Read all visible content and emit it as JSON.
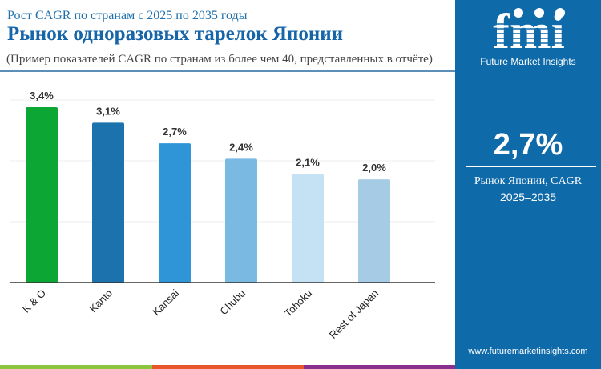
{
  "header": {
    "subtitle": "Рост CAGR по странам с 2025 по 2035 годы",
    "title": "Рынок одноразовых тарелок Японии",
    "note": "(Пример показателей CAGR по странам из более чем 40, представленных в отчёте)"
  },
  "sidebar": {
    "brand": "Future Market Insights",
    "logo_text": "fmi",
    "headline_value": "2,7%",
    "caption_line1": "Рынок Японии, CAGR",
    "caption_line2": "2025–2035",
    "url": "www.futuremarketinsights.com",
    "background": "#0f6aa9"
  },
  "footer_strip_colors": [
    "#8cc63f",
    "#e8572a",
    "#8b2f8f"
  ],
  "chart_data": {
    "type": "bar",
    "categories": [
      "K & O",
      "Kanto",
      "Kansai",
      "Chubu",
      "Tohoku",
      "Rest of Japan"
    ],
    "values": [
      3.4,
      3.1,
      2.7,
      2.4,
      2.1,
      2.0
    ],
    "data_labels": [
      "3,4%",
      "3,1%",
      "2,7%",
      "2,4%",
      "2,1%",
      "2,0%"
    ],
    "colors": [
      "#0ba634",
      "#1b72ad",
      "#2f95d6",
      "#7ab9e2",
      "#c4e2f4",
      "#a6cbe4"
    ],
    "ylim": [
      0,
      3.54
    ],
    "grid": true,
    "xlabel": "",
    "ylabel": ""
  }
}
